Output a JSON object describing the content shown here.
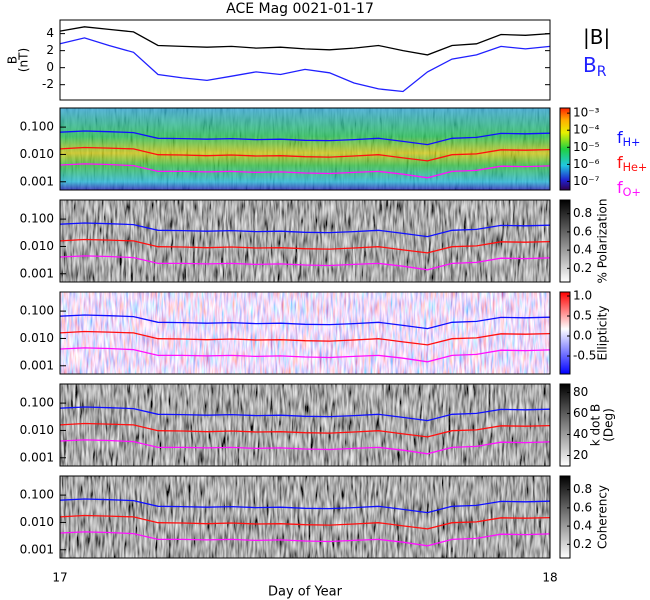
{
  "chart_data": [
    {
      "type": "line",
      "title": "ACE Mag 0021-01-17",
      "ylabel": [
        "B",
        "(nT)"
      ],
      "x": [
        17.0,
        17.05,
        17.1,
        17.15,
        17.2,
        17.25,
        17.3,
        17.35,
        17.4,
        17.45,
        17.5,
        17.55,
        17.6,
        17.65,
        17.7,
        17.75,
        17.8,
        17.85,
        17.9,
        17.95,
        18.0
      ],
      "xlim": [
        17,
        18
      ],
      "ylim": [
        -3.8,
        5.6
      ],
      "yticks": [
        4,
        2,
        0,
        -2
      ],
      "series": [
        {
          "name": "|B|",
          "color": "#000000",
          "values": [
            4.3,
            4.8,
            4.5,
            4.2,
            2.6,
            2.5,
            2.4,
            2.5,
            2.3,
            2.4,
            2.2,
            2.1,
            2.3,
            2.6,
            2.0,
            1.5,
            2.6,
            2.8,
            3.9,
            3.8,
            4.0
          ]
        },
        {
          "name": "B",
          "name_sub": "R",
          "color": "#2020ff",
          "values": [
            2.8,
            3.5,
            2.6,
            1.8,
            -0.8,
            -1.2,
            -1.5,
            -1.0,
            -0.5,
            -0.8,
            -0.2,
            -0.6,
            -1.8,
            -2.5,
            -2.8,
            -0.5,
            1.0,
            1.5,
            2.5,
            2.2,
            2.5
          ]
        }
      ]
    },
    {
      "type": "spectrogram",
      "xlabel": "Day of Year",
      "x": [
        17.0,
        17.05,
        17.1,
        17.15,
        17.2,
        17.25,
        17.3,
        17.35,
        17.4,
        17.45,
        17.5,
        17.55,
        17.6,
        17.65,
        17.7,
        17.75,
        17.8,
        17.85,
        17.9,
        17.95,
        18.0
      ],
      "xlim": [
        17,
        18
      ],
      "xticks": [
        17,
        18
      ],
      "log_y": true,
      "ylim": [
        0.0005,
        0.5
      ],
      "yticks": [
        {
          "value": 0.1,
          "label": "0.100"
        },
        {
          "value": 0.01,
          "label": "0.010"
        },
        {
          "value": 0.001,
          "label": "0.001"
        }
      ],
      "series": [
        {
          "name": "f",
          "name_sub": "H+",
          "color": "#1010ff",
          "values": [
            0.065,
            0.072,
            0.068,
            0.063,
            0.039,
            0.038,
            0.036,
            0.038,
            0.035,
            0.036,
            0.033,
            0.032,
            0.035,
            0.039,
            0.03,
            0.023,
            0.039,
            0.042,
            0.059,
            0.057,
            0.06
          ]
        },
        {
          "name": "f",
          "name_sub": "He+",
          "color": "#ff1010",
          "values": [
            0.016,
            0.018,
            0.017,
            0.016,
            0.0098,
            0.0095,
            0.009,
            0.0095,
            0.0088,
            0.009,
            0.0083,
            0.008,
            0.0088,
            0.0098,
            0.0075,
            0.0058,
            0.0098,
            0.0105,
            0.0148,
            0.0143,
            0.015
          ]
        },
        {
          "name": "f",
          "name_sub": "O+",
          "color": "#ff10ff",
          "values": [
            0.0041,
            0.0045,
            0.0043,
            0.0039,
            0.0024,
            0.0024,
            0.0023,
            0.0024,
            0.0022,
            0.0023,
            0.0021,
            0.002,
            0.0022,
            0.0024,
            0.0019,
            0.0014,
            0.0024,
            0.0026,
            0.0037,
            0.0036,
            0.0038
          ]
        }
      ],
      "panels": [
        {
          "colormap": "spectral",
          "clim": [
            -7.5,
            -2.7
          ],
          "cticks": [
            {
              "value": -3,
              "label": "10⁻³"
            },
            {
              "value": -4,
              "label": "10⁻⁴"
            },
            {
              "value": -5,
              "label": "10⁻⁵"
            },
            {
              "value": -6,
              "label": "10⁻⁶"
            },
            {
              "value": -7,
              "label": "10⁻⁷"
            }
          ]
        },
        {
          "colormap": "gray",
          "colorbar_label": [
            "% Polarization"
          ],
          "clim": [
            0.05,
            0.95
          ],
          "cticks": [
            0.8,
            0.6,
            0.4,
            0.2
          ]
        },
        {
          "colormap": "redblue",
          "colorbar_label": [
            "Ellipticity"
          ],
          "clim": [
            -0.95,
            1.1
          ],
          "cticks": [
            {
              "value": 1,
              "label": "1.0"
            },
            0.5,
            {
              "value": 0,
              "label": "0.0"
            },
            -0.5
          ]
        },
        {
          "colormap": "gray",
          "colorbar_label": [
            "k dot B",
            "(Deg)"
          ],
          "clim": [
            10,
            88
          ],
          "cticks": [
            80,
            60,
            40,
            20
          ]
        },
        {
          "colormap": "gray",
          "colorbar_label": [
            "Coherency"
          ],
          "clim": [
            0.05,
            0.95
          ],
          "cticks": [
            0.8,
            0.6,
            0.4,
            0.2
          ]
        }
      ]
    }
  ]
}
